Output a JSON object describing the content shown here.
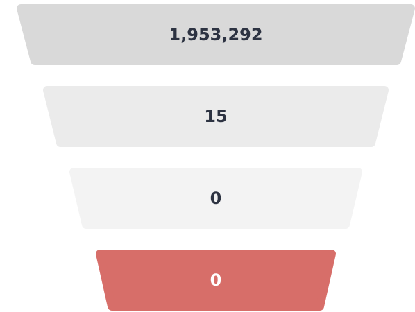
{
  "chart_data": {
    "type": "funnel",
    "values": [
      1953292,
      15,
      0,
      0
    ],
    "value_labels": [
      "1,953,292",
      "15",
      "0",
      "0"
    ],
    "colors": [
      "#d9d9d9",
      "#ebebeb",
      "#f3f3f3",
      "#d76e69"
    ],
    "label_colors": [
      "#2d3342",
      "#2d3342",
      "#2d3342",
      "#ffffff"
    ]
  }
}
